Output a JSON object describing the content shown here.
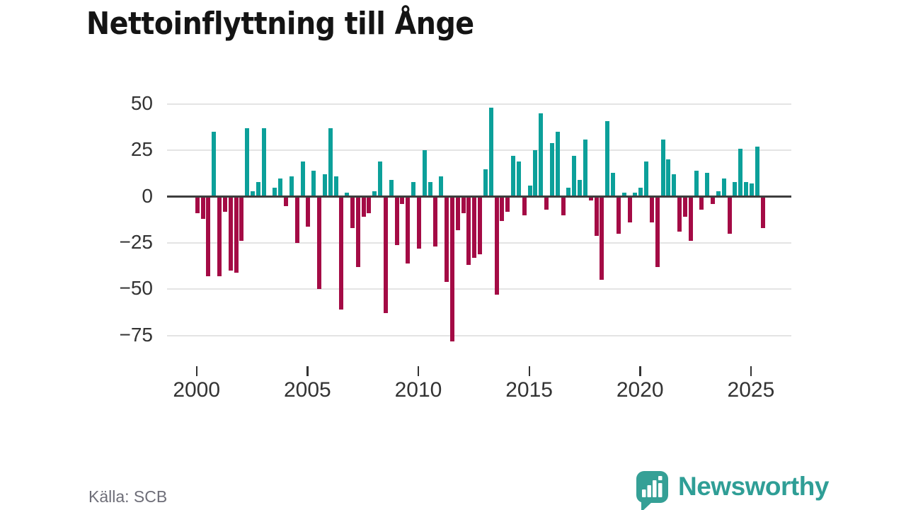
{
  "title": "Nettoinflyttning till Ånge",
  "source": "Källa: SCB",
  "branding": {
    "logo_text": "Newsworthy",
    "logo_text_color": "#2f9e96",
    "logo_icon_color": "#35a096"
  },
  "colors": {
    "positive_bar": "#0ca09a",
    "negative_bar": "#a40b45",
    "gridline": "#e4e4e4",
    "zero_line": "#3d3d3d",
    "axis_text": "#333333",
    "title_text": "#141414",
    "source_text": "#6e6e78"
  },
  "chart_data": {
    "type": "bar",
    "title": "Nettoinflyttning till Ånge",
    "period": "quarterly",
    "start": "2000 Q1",
    "end": "2025 Q3",
    "x_ticks": [
      2000,
      2005,
      2010,
      2015,
      2020,
      2025
    ],
    "y_ticks": [
      50,
      25,
      0,
      -25,
      -50,
      -75
    ],
    "y_tick_labels": [
      "50",
      "25",
      "0",
      "−25",
      "−50",
      "−75"
    ],
    "ylim": [
      -85,
      55
    ],
    "legend": "none",
    "grid": "horizontal",
    "values": [
      -9,
      -12,
      -43,
      35,
      -43,
      -8,
      -40,
      -41,
      -24,
      37,
      3,
      8,
      37,
      0,
      5,
      10,
      -5,
      11,
      -25,
      19,
      -16,
      14,
      -50,
      12,
      37,
      11,
      -61,
      2,
      -17,
      -38,
      -11,
      -9,
      3,
      19,
      -63,
      9,
      -26,
      -4,
      -36,
      8,
      -28,
      25,
      8,
      -27,
      11,
      -46,
      -78,
      -18,
      -9,
      -37,
      -33,
      -31,
      15,
      48,
      -53,
      -13,
      -8,
      22,
      19,
      -10,
      6,
      25,
      45,
      -7,
      29,
      35,
      -10,
      5,
      22,
      9,
      31,
      -2,
      -21,
      -45,
      41,
      13,
      -20,
      2,
      -14,
      2,
      5,
      19,
      -14,
      -38,
      31,
      20,
      12,
      -19,
      -11,
      -24,
      14,
      -7,
      13,
      -4,
      3,
      10,
      -20,
      8,
      26,
      8,
      7,
      27,
      -17
    ]
  }
}
